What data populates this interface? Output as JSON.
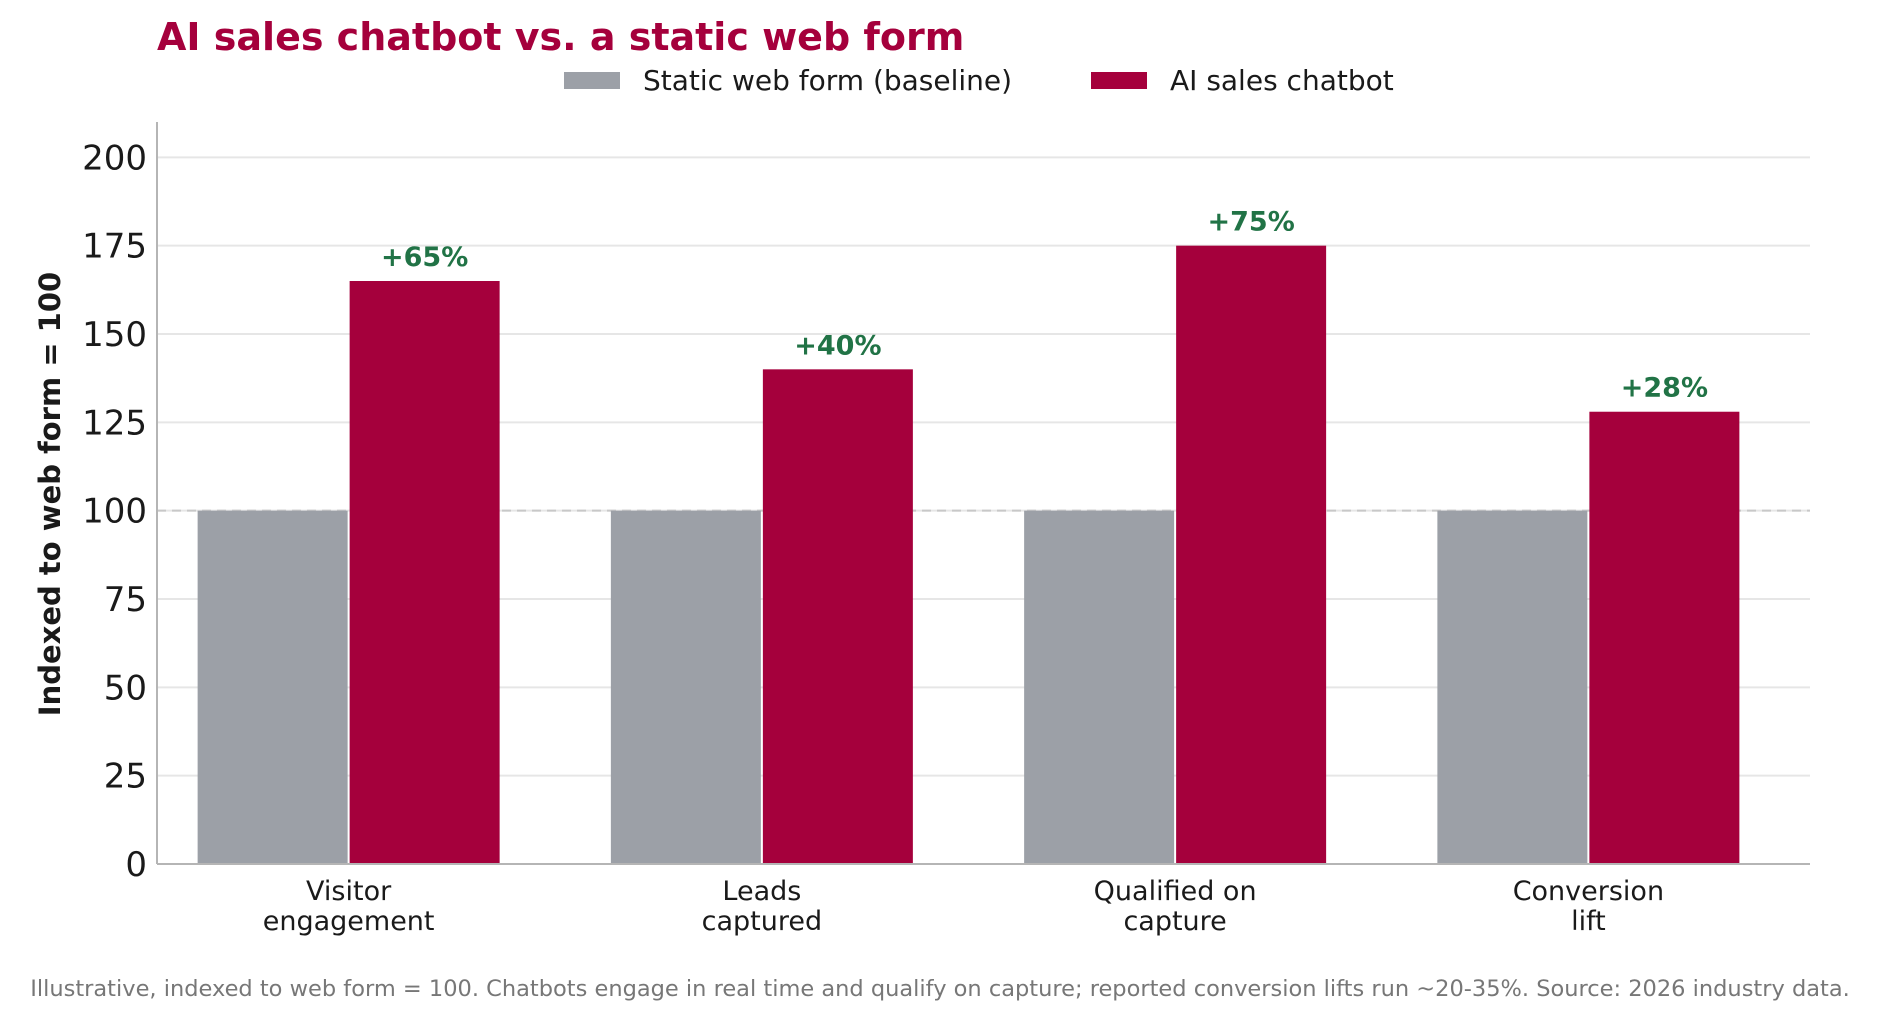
{
  "chart_data": {
    "type": "bar",
    "title": "AI sales chatbot vs. a static web form",
    "ylabel": "Indexed to web form = 100",
    "xlabel": "",
    "categories": [
      [
        "Visitor",
        "engagement"
      ],
      [
        "Leads",
        "captured"
      ],
      [
        "Qualified on",
        "capture"
      ],
      [
        "Conversion",
        "lift"
      ]
    ],
    "series": [
      {
        "name": "Static web form (baseline)",
        "values": [
          100,
          100,
          100,
          100
        ],
        "color": "#9ca0a7"
      },
      {
        "name": "AI sales chatbot",
        "values": [
          165,
          140,
          175,
          128
        ],
        "color": "#a5003c"
      }
    ],
    "lift_labels": [
      "+65%",
      "+40%",
      "+75%",
      "+28%"
    ],
    "lift_color": "#217346",
    "title_color": "#a5003c",
    "ylim": [
      0,
      210
    ],
    "yticks": [
      0,
      25,
      50,
      75,
      100,
      125,
      150,
      175,
      200
    ],
    "reference_line": 100,
    "grid": true,
    "legend_position": "top-center"
  },
  "footnote": "Illustrative, indexed to web form = 100. Chatbots engage in real time and qualify on capture; reported conversion lifts run ~20-35%. Source: 2026 industry data."
}
